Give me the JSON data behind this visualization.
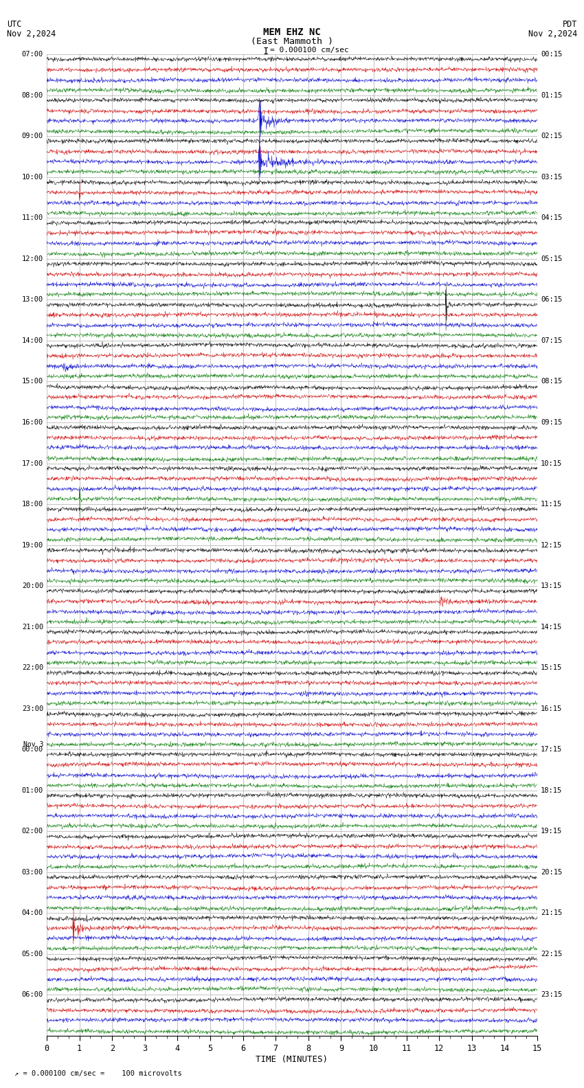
{
  "title_line1": "MEM EHZ NC",
  "title_line2": "(East Mammoth )",
  "scale_label": "= 0.000100 cm/sec",
  "left_label_top": "UTC",
  "left_label_date": "Nov 2,2024",
  "right_label_top": "PDT",
  "right_label_date": "Nov 2,2024",
  "xlabel": "TIME (MINUTES)",
  "footer_label": "= 0.000100 cm/sec =    100 microvolts",
  "bg_color": "#ffffff",
  "trace_colors": [
    "#000000",
    "#cc0000",
    "#0000cc",
    "#007700"
  ],
  "grid_color": "#aaaaaa",
  "n_rows": 24,
  "traces_per_row": 4,
  "xmin": 0,
  "xmax": 15,
  "utc_row_labels": [
    "07:00",
    "08:00",
    "09:00",
    "10:00",
    "11:00",
    "12:00",
    "13:00",
    "14:00",
    "15:00",
    "16:00",
    "17:00",
    "18:00",
    "19:00",
    "20:00",
    "21:00",
    "22:00",
    "23:00",
    "00:00",
    "01:00",
    "02:00",
    "03:00",
    "04:00",
    "05:00",
    "06:00"
  ],
  "pdt_row_labels": [
    "00:15",
    "01:15",
    "02:15",
    "03:15",
    "04:15",
    "05:15",
    "06:15",
    "07:15",
    "08:15",
    "09:15",
    "10:15",
    "11:15",
    "12:15",
    "13:15",
    "14:15",
    "15:15",
    "16:15",
    "17:15",
    "18:15",
    "19:15",
    "20:15",
    "21:15",
    "22:15",
    "23:15"
  ],
  "nov3_row": 17,
  "noise_seed": 42
}
